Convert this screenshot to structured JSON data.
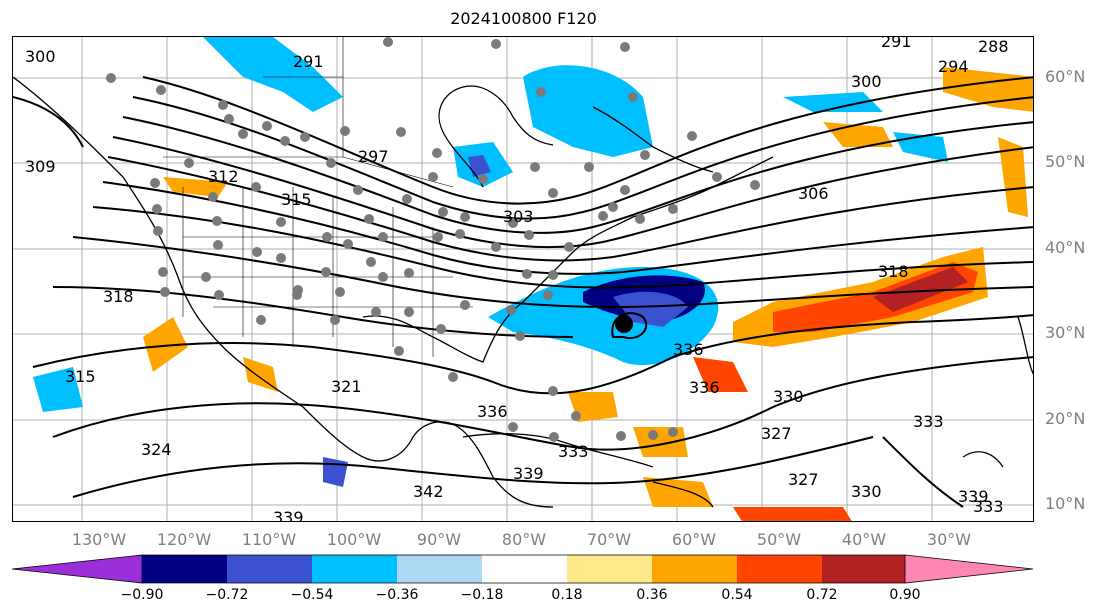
{
  "title": "2024100800 F120",
  "lat_labels": [
    "60°N",
    "50°N",
    "40°N",
    "30°N",
    "20°N",
    "10°N"
  ],
  "lon_labels": [
    "130°W",
    "120°W",
    "110°W",
    "100°W",
    "90°W",
    "80°W",
    "70°W",
    "60°W",
    "50°W",
    "40°W",
    "30°W"
  ],
  "colorbar": {
    "ticks": [
      "−0.90",
      "−0.72",
      "−0.54",
      "−0.36",
      "−0.18",
      "0.18",
      "0.36",
      "0.54",
      "0.72",
      "0.90"
    ],
    "colors": [
      "#9b30d9",
      "#000080",
      "#3a52d0",
      "#00bfff",
      "#add8f5",
      "#ffffff",
      "#ffe88a",
      "#ffa500",
      "#ff4500",
      "#b22222",
      "#ff85b3"
    ]
  },
  "contour_labels": [
    "288",
    "291",
    "291",
    "294",
    "297",
    "300",
    "300",
    "303",
    "306",
    "309",
    "312",
    "315",
    "318",
    "318",
    "315",
    "321",
    "324",
    "327",
    "327",
    "330",
    "330",
    "333",
    "333",
    "333",
    "336",
    "336",
    "336",
    "339",
    "339",
    "339",
    "342"
  ],
  "markers": {
    "storm_center": "black-dot",
    "stations": "gray-dots"
  }
}
